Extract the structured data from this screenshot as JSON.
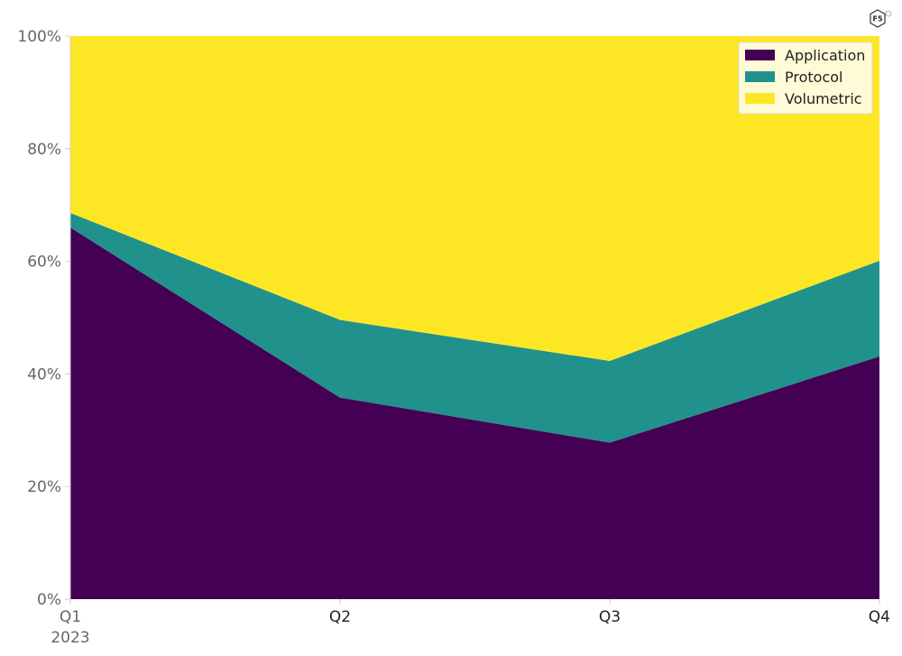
{
  "logo": {
    "text": "F5"
  },
  "chart_data": {
    "type": "area",
    "stacked": true,
    "normalized": true,
    "categories": [
      "Q1",
      "Q2",
      "Q3",
      "Q4"
    ],
    "category_sublabels": [
      "2023",
      "",
      "",
      ""
    ],
    "series": [
      {
        "name": "Application",
        "color": "#440154",
        "values": [
          66.0,
          35.8,
          27.8,
          43.1
        ]
      },
      {
        "name": "Protocol",
        "color": "#21918c",
        "values": [
          2.6,
          13.8,
          14.5,
          17.0
        ]
      },
      {
        "name": "Volumetric",
        "color": "#fde725",
        "values": [
          31.4,
          50.4,
          57.7,
          39.9
        ]
      }
    ],
    "y_ticks": [
      "0%",
      "20%",
      "40%",
      "60%",
      "80%",
      "100%"
    ],
    "ylim": [
      0,
      100
    ],
    "legend_position": "top-right",
    "grid": false
  }
}
